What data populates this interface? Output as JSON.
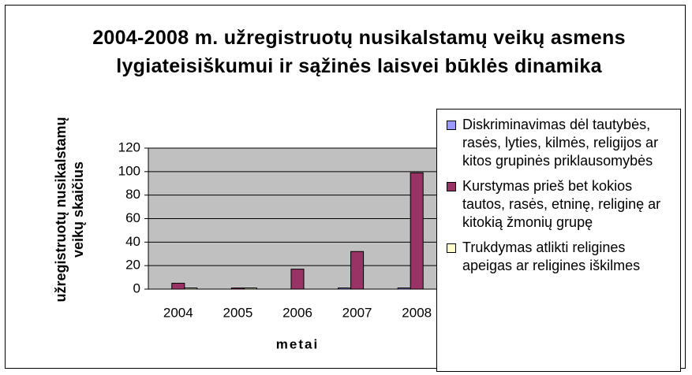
{
  "chart_data": {
    "type": "bar",
    "title": "2004-2008 m. užregistruotų nusikalstamų veikų asmens lygiateisiškumui ir sąžinės laisvei būklės dinamika",
    "x_label": "metai",
    "y_label": "užregistruotų nusikalstamų veikų skaičius",
    "categories": [
      "2004",
      "2005",
      "2006",
      "2007",
      "2008"
    ],
    "series": [
      {
        "name": "Diskriminavimas dėl tautybės, rasės, lyties, kilmės, religijos ar kitos grupinės priklausomybės",
        "color": "#9999ff",
        "values": [
          0,
          0,
          0,
          1,
          1
        ]
      },
      {
        "name": "Kurstymas prieš bet kokios tautos, rasės, etninę, religinę ar kitokią žmonių grupę",
        "color": "#993366",
        "values": [
          5,
          1,
          17,
          32,
          99
        ]
      },
      {
        "name": "Trukdymas atlikti religines apeigas ar religines iškilmes",
        "color": "#ffffcc",
        "values": [
          1,
          1,
          0,
          0,
          0
        ]
      }
    ],
    "ylim": [
      0,
      120
    ],
    "yticks": [
      0,
      20,
      40,
      60,
      80,
      100,
      120
    ],
    "grid": true,
    "legend": "right"
  }
}
